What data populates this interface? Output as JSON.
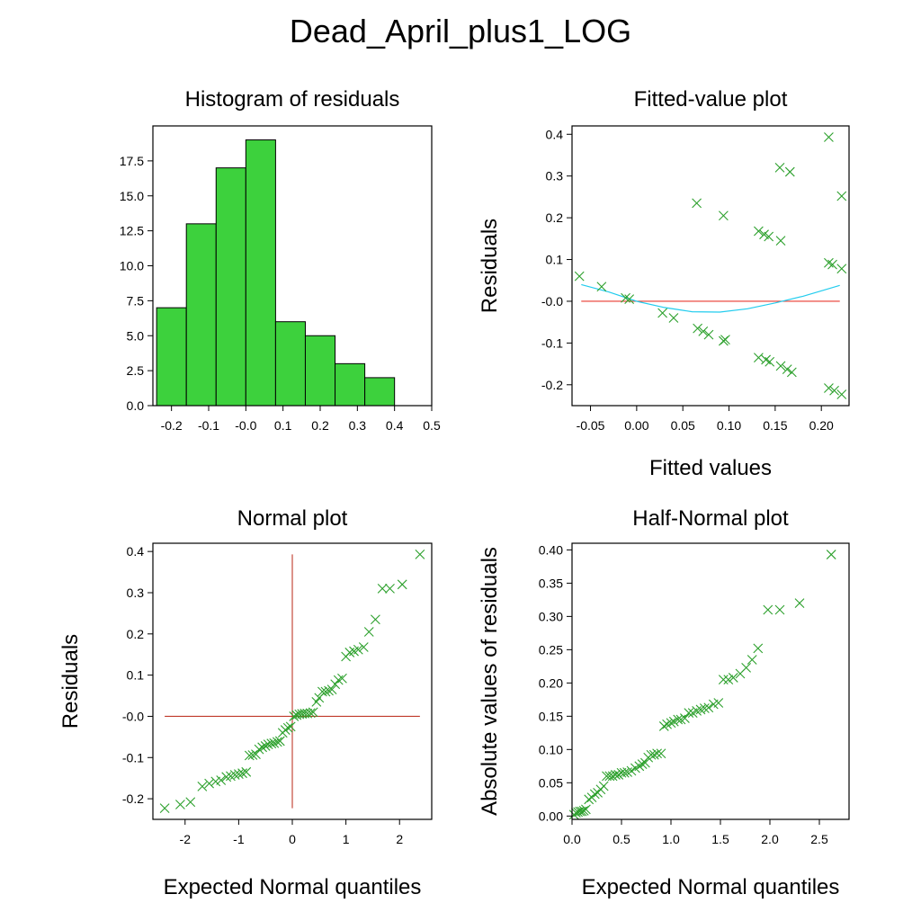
{
  "title": "Dead_April_plus1_LOG",
  "colors": {
    "bar": "#3dd13d",
    "marker": "#2ca02c",
    "refline": "#e8392f",
    "smooth": "#22ccee",
    "axis_cross": "#c0392b"
  },
  "chart_data": [
    {
      "id": "histogram",
      "type": "bar",
      "title": "Histogram of residuals",
      "xlabel": "",
      "ylabel": "",
      "xlim": [
        -0.25,
        0.5
      ],
      "ylim": [
        0,
        20
      ],
      "xticks": [
        -0.2,
        -0.1,
        0.0,
        0.1,
        0.2,
        0.3,
        0.4,
        0.5
      ],
      "xtick_labels": [
        "-0.2",
        "-0.1",
        "-0.0",
        "0.1",
        "0.2",
        "0.3",
        "0.4",
        "0.5"
      ],
      "yticks": [
        0,
        2.5,
        5,
        7.5,
        10,
        12.5,
        15,
        17.5
      ],
      "ytick_labels": [
        "0.0",
        "2.5",
        "5.0",
        "7.5",
        "10.0",
        "12.5",
        "15.0",
        "17.5"
      ],
      "bins": [
        {
          "from": -0.24,
          "to": -0.16,
          "count": 7
        },
        {
          "from": -0.16,
          "to": -0.08,
          "count": 13
        },
        {
          "from": -0.08,
          "to": 0.0,
          "count": 17
        },
        {
          "from": 0.0,
          "to": 0.08,
          "count": 19
        },
        {
          "from": 0.08,
          "to": 0.16,
          "count": 6
        },
        {
          "from": 0.16,
          "to": 0.24,
          "count": 5
        },
        {
          "from": 0.24,
          "to": 0.32,
          "count": 3
        },
        {
          "from": 0.32,
          "to": 0.4,
          "count": 2
        }
      ]
    },
    {
      "id": "fitted",
      "type": "scatter",
      "title": "Fitted-value plot",
      "xlabel": "Fitted values",
      "ylabel": "Residuals",
      "xlim": [
        -0.07,
        0.23
      ],
      "ylim": [
        -0.25,
        0.42
      ],
      "xticks": [
        -0.05,
        0.0,
        0.05,
        0.1,
        0.15,
        0.2
      ],
      "xtick_labels": [
        "-0.05",
        "0.00",
        "0.05",
        "0.10",
        "0.15",
        "0.20"
      ],
      "yticks": [
        -0.2,
        -0.1,
        0.0,
        0.1,
        0.2,
        0.3,
        0.4
      ],
      "ytick_labels": [
        "-0.2",
        "-0.1",
        "-0.0",
        "0.1",
        "0.2",
        "0.3",
        "0.4"
      ],
      "reference_line": {
        "y": 0.0,
        "from": -0.06,
        "to": 0.22
      },
      "smooth_line": [
        [
          -0.06,
          0.04
        ],
        [
          -0.03,
          0.022
        ],
        [
          0.0,
          0.0
        ],
        [
          0.03,
          -0.015
        ],
        [
          0.06,
          -0.025
        ],
        [
          0.09,
          -0.026
        ],
        [
          0.12,
          -0.018
        ],
        [
          0.15,
          -0.004
        ],
        [
          0.18,
          0.012
        ],
        [
          0.22,
          0.038
        ]
      ],
      "points": [
        [
          -0.062,
          0.06
        ],
        [
          -0.038,
          0.035
        ],
        [
          -0.012,
          0.008
        ],
        [
          -0.008,
          0.005
        ],
        [
          0.028,
          -0.028
        ],
        [
          0.04,
          -0.04
        ],
        [
          0.065,
          0.235
        ],
        [
          0.066,
          -0.065
        ],
        [
          0.072,
          -0.072
        ],
        [
          0.078,
          -0.08
        ],
        [
          0.094,
          0.205
        ],
        [
          0.094,
          -0.095
        ],
        [
          0.096,
          -0.092
        ],
        [
          0.132,
          0.168
        ],
        [
          0.132,
          -0.135
        ],
        [
          0.138,
          0.16
        ],
        [
          0.14,
          -0.14
        ],
        [
          0.143,
          0.155
        ],
        [
          0.144,
          -0.145
        ],
        [
          0.155,
          0.32
        ],
        [
          0.156,
          0.145
        ],
        [
          0.156,
          -0.155
        ],
        [
          0.163,
          -0.163
        ],
        [
          0.166,
          0.31
        ],
        [
          0.168,
          -0.17
        ],
        [
          0.208,
          0.393
        ],
        [
          0.208,
          0.092
        ],
        [
          0.208,
          -0.208
        ],
        [
          0.212,
          0.088
        ],
        [
          0.214,
          -0.214
        ],
        [
          0.222,
          0.252
        ],
        [
          0.222,
          0.078
        ],
        [
          0.222,
          -0.223
        ]
      ]
    },
    {
      "id": "normal",
      "type": "scatter",
      "title": "Normal plot",
      "xlabel": "Expected Normal quantiles",
      "ylabel": "Residuals",
      "xlim": [
        -2.6,
        2.6
      ],
      "ylim": [
        -0.25,
        0.42
      ],
      "xticks": [
        -2,
        -1,
        0,
        1,
        2
      ],
      "xtick_labels": [
        "-2",
        "-1",
        "0",
        "1",
        "2"
      ],
      "yticks": [
        -0.2,
        -0.1,
        0.0,
        0.1,
        0.2,
        0.3,
        0.4
      ],
      "ytick_labels": [
        "-0.2",
        "-0.1",
        "-0.0",
        "0.1",
        "0.2",
        "0.3",
        "0.4"
      ],
      "axis_cross": {
        "h": {
          "y": 0.0,
          "from": -2.38,
          "to": 2.38
        },
        "v": {
          "x": 0.0,
          "from": -0.223,
          "to": 0.393
        }
      },
      "points": [
        [
          -2.38,
          -0.223
        ],
        [
          -2.09,
          -0.214
        ],
        [
          -1.9,
          -0.208
        ],
        [
          -1.68,
          -0.17
        ],
        [
          -1.55,
          -0.163
        ],
        [
          -1.43,
          -0.158
        ],
        [
          -1.33,
          -0.155
        ],
        [
          -1.23,
          -0.147
        ],
        [
          -1.15,
          -0.145
        ],
        [
          -1.07,
          -0.142
        ],
        [
          -1.0,
          -0.14
        ],
        [
          -0.93,
          -0.138
        ],
        [
          -0.86,
          -0.135
        ],
        [
          -0.8,
          -0.095
        ],
        [
          -0.74,
          -0.094
        ],
        [
          -0.68,
          -0.092
        ],
        [
          -0.62,
          -0.08
        ],
        [
          -0.56,
          -0.075
        ],
        [
          -0.5,
          -0.072
        ],
        [
          -0.45,
          -0.068
        ],
        [
          -0.39,
          -0.066
        ],
        [
          -0.34,
          -0.065
        ],
        [
          -0.28,
          -0.062
        ],
        [
          -0.23,
          -0.06
        ],
        [
          -0.18,
          -0.04
        ],
        [
          -0.13,
          -0.033
        ],
        [
          -0.08,
          -0.028
        ],
        [
          -0.03,
          -0.025
        ],
        [
          0.03,
          0.0
        ],
        [
          0.08,
          0.003
        ],
        [
          0.13,
          0.005
        ],
        [
          0.18,
          0.006
        ],
        [
          0.23,
          0.007
        ],
        [
          0.28,
          0.007
        ],
        [
          0.34,
          0.008
        ],
        [
          0.39,
          0.01
        ],
        [
          0.45,
          0.035
        ],
        [
          0.5,
          0.045
        ],
        [
          0.56,
          0.06
        ],
        [
          0.62,
          0.06
        ],
        [
          0.68,
          0.062
        ],
        [
          0.74,
          0.065
        ],
        [
          0.8,
          0.078
        ],
        [
          0.86,
          0.088
        ],
        [
          0.93,
          0.092
        ],
        [
          1.0,
          0.145
        ],
        [
          1.07,
          0.155
        ],
        [
          1.15,
          0.158
        ],
        [
          1.23,
          0.162
        ],
        [
          1.33,
          0.168
        ],
        [
          1.43,
          0.205
        ],
        [
          1.55,
          0.235
        ],
        [
          1.68,
          0.31
        ],
        [
          1.82,
          0.31
        ],
        [
          2.05,
          0.32
        ],
        [
          2.38,
          0.393
        ]
      ]
    },
    {
      "id": "halfnormal",
      "type": "scatter",
      "title": "Half-Normal plot",
      "xlabel": "Expected Normal quantiles",
      "ylabel": "Absolute values of residuals",
      "xlim": [
        0,
        2.8
      ],
      "ylim": [
        -0.005,
        0.41
      ],
      "xticks": [
        0.0,
        0.5,
        1.0,
        1.5,
        2.0,
        2.5
      ],
      "xtick_labels": [
        "0.0",
        "0.5",
        "1.0",
        "1.5",
        "2.0",
        "2.5"
      ],
      "yticks": [
        0.0,
        0.05,
        0.1,
        0.15,
        0.2,
        0.25,
        0.3,
        0.35,
        0.4
      ],
      "ytick_labels": [
        "0.00",
        "0.05",
        "0.10",
        "0.15",
        "0.20",
        "0.25",
        "0.30",
        "0.35",
        "0.40"
      ],
      "points": [
        [
          0.02,
          0.002
        ],
        [
          0.04,
          0.005
        ],
        [
          0.06,
          0.006
        ],
        [
          0.08,
          0.007
        ],
        [
          0.1,
          0.007
        ],
        [
          0.12,
          0.008
        ],
        [
          0.14,
          0.01
        ],
        [
          0.17,
          0.025
        ],
        [
          0.2,
          0.028
        ],
        [
          0.23,
          0.033
        ],
        [
          0.26,
          0.035
        ],
        [
          0.29,
          0.04
        ],
        [
          0.32,
          0.045
        ],
        [
          0.35,
          0.06
        ],
        [
          0.38,
          0.06
        ],
        [
          0.41,
          0.06
        ],
        [
          0.44,
          0.062
        ],
        [
          0.47,
          0.062
        ],
        [
          0.5,
          0.065
        ],
        [
          0.53,
          0.065
        ],
        [
          0.56,
          0.066
        ],
        [
          0.6,
          0.068
        ],
        [
          0.64,
          0.072
        ],
        [
          0.68,
          0.075
        ],
        [
          0.71,
          0.078
        ],
        [
          0.74,
          0.08
        ],
        [
          0.77,
          0.088
        ],
        [
          0.8,
          0.092
        ],
        [
          0.83,
          0.092
        ],
        [
          0.86,
          0.094
        ],
        [
          0.9,
          0.094
        ],
        [
          0.93,
          0.135
        ],
        [
          0.96,
          0.138
        ],
        [
          1.0,
          0.14
        ],
        [
          1.03,
          0.142
        ],
        [
          1.07,
          0.145
        ],
        [
          1.1,
          0.145
        ],
        [
          1.14,
          0.147
        ],
        [
          1.18,
          0.155
        ],
        [
          1.22,
          0.155
        ],
        [
          1.26,
          0.158
        ],
        [
          1.3,
          0.16
        ],
        [
          1.34,
          0.162
        ],
        [
          1.38,
          0.163
        ],
        [
          1.43,
          0.168
        ],
        [
          1.48,
          0.17
        ],
        [
          1.53,
          0.205
        ],
        [
          1.58,
          0.205
        ],
        [
          1.63,
          0.208
        ],
        [
          1.7,
          0.214
        ],
        [
          1.76,
          0.223
        ],
        [
          1.82,
          0.235
        ],
        [
          1.88,
          0.252
        ],
        [
          1.98,
          0.31
        ],
        [
          2.1,
          0.31
        ],
        [
          2.3,
          0.32
        ],
        [
          2.62,
          0.393
        ]
      ]
    }
  ]
}
